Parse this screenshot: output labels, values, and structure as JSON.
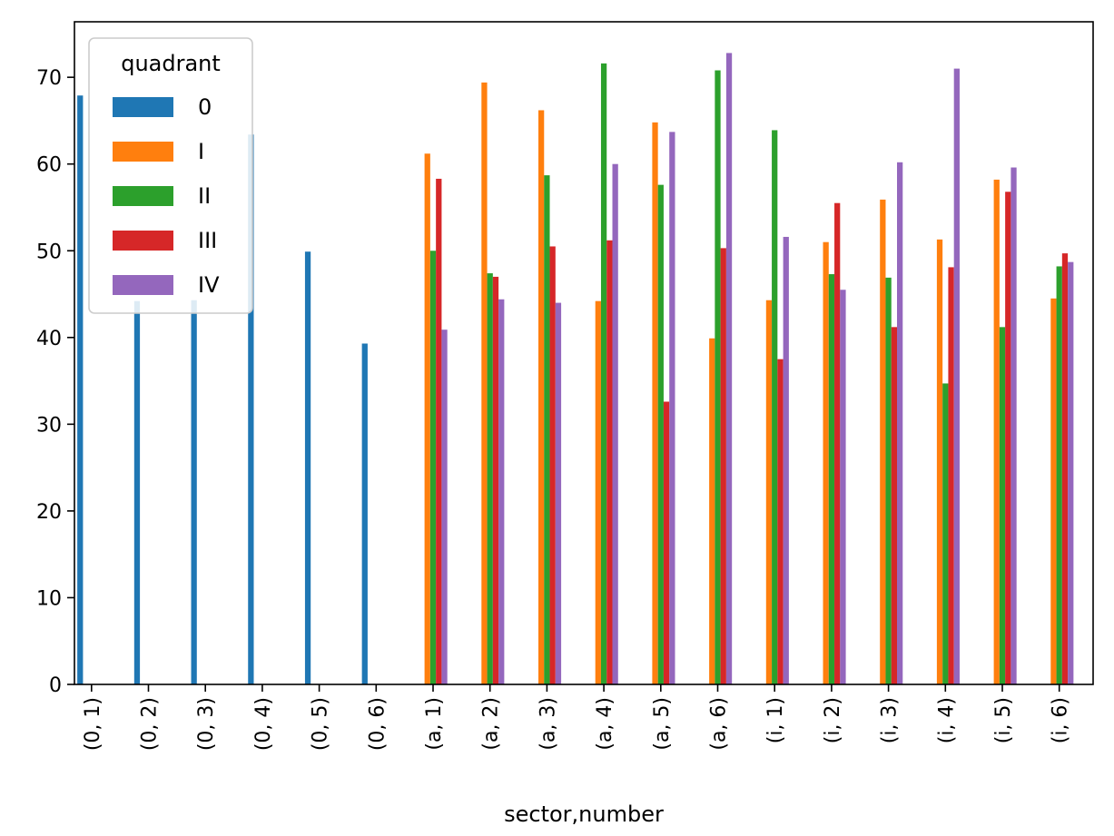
{
  "chart_data": {
    "type": "bar",
    "title": "",
    "xlabel": "sector,number",
    "ylabel": "",
    "ylim": [
      0,
      76.4
    ],
    "yticks": [
      0,
      10,
      20,
      30,
      40,
      50,
      60,
      70
    ],
    "grid": false,
    "legend": {
      "title": "quadrant",
      "position": "upper-left"
    },
    "categories": [
      "(0, 1)",
      "(0, 2)",
      "(0, 3)",
      "(0, 4)",
      "(0, 5)",
      "(0, 6)",
      "(a, 1)",
      "(a, 2)",
      "(a, 3)",
      "(a, 4)",
      "(a, 5)",
      "(a, 6)",
      "(i, 1)",
      "(i, 2)",
      "(i, 3)",
      "(i, 4)",
      "(i, 5)",
      "(i, 6)"
    ],
    "series": [
      {
        "name": "0",
        "color": "#1f77b4",
        "values": [
          67.9,
          44.2,
          44.3,
          63.4,
          49.9,
          39.3,
          null,
          null,
          null,
          null,
          null,
          null,
          null,
          null,
          null,
          null,
          null,
          null
        ]
      },
      {
        "name": "I",
        "color": "#ff7f0e",
        "values": [
          null,
          null,
          null,
          null,
          null,
          null,
          61.2,
          69.4,
          66.2,
          44.2,
          64.8,
          39.9,
          44.3,
          51.0,
          55.9,
          51.3,
          58.2,
          44.5
        ]
      },
      {
        "name": "II",
        "color": "#2ca02c",
        "values": [
          null,
          null,
          null,
          null,
          null,
          null,
          50.0,
          47.4,
          58.7,
          71.6,
          57.6,
          70.8,
          63.9,
          47.3,
          46.9,
          34.7,
          41.2,
          48.2
        ]
      },
      {
        "name": "III",
        "color": "#d62728",
        "values": [
          null,
          null,
          null,
          null,
          null,
          null,
          58.3,
          47.0,
          50.5,
          51.2,
          32.6,
          50.3,
          37.5,
          55.5,
          41.2,
          48.1,
          56.8,
          49.7
        ]
      },
      {
        "name": "IV",
        "color": "#9467bd",
        "values": [
          null,
          null,
          null,
          null,
          null,
          null,
          40.9,
          44.4,
          44.0,
          60.0,
          63.7,
          72.8,
          51.6,
          45.5,
          60.2,
          71.0,
          59.6,
          48.7
        ]
      }
    ]
  }
}
